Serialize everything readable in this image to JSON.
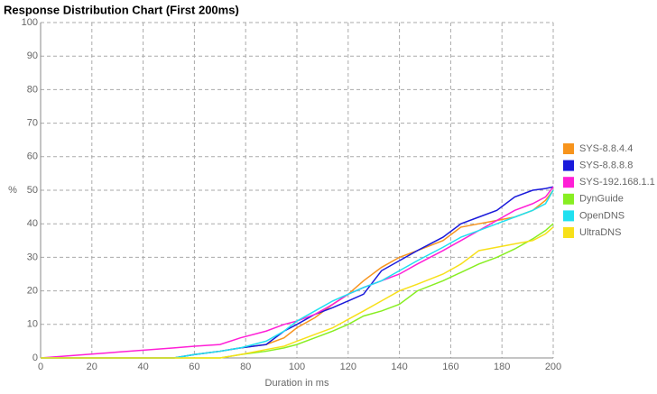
{
  "chart_data": {
    "type": "line",
    "title": "Response Distribution Chart (First 200ms)",
    "x_label": "Duration in ms",
    "y_label": "%",
    "x": [
      0,
      52,
      60,
      70,
      78,
      88,
      95,
      100,
      107,
      114,
      120,
      126,
      133,
      140,
      147,
      157,
      164,
      171,
      178,
      185,
      192,
      197,
      200
    ],
    "xlim": [
      0,
      200
    ],
    "xticks": [
      0,
      20,
      40,
      60,
      80,
      100,
      120,
      140,
      160,
      180,
      200
    ],
    "ylim": [
      0,
      100
    ],
    "yticks": [
      0,
      10,
      20,
      30,
      40,
      50,
      60,
      70,
      80,
      90,
      100
    ],
    "grid": true,
    "legend": "right",
    "series": [
      {
        "name": "SYS-8.8.4.4",
        "color": "#f7941d",
        "values": [
          0,
          0,
          1,
          2,
          3,
          4,
          6,
          9,
          12,
          16,
          19,
          23,
          27,
          30,
          32,
          35,
          39,
          40,
          41,
          42,
          44,
          47,
          50
        ]
      },
      {
        "name": "SYS-8.8.8.8",
        "color": "#1a1adb",
        "values": [
          0,
          0,
          1,
          2,
          3,
          4,
          8,
          10,
          13,
          15,
          17,
          19,
          26,
          29,
          32,
          36,
          40,
          42,
          44,
          48,
          50,
          50.5,
          51
        ]
      },
      {
        "name": "SYS-192.168.1.1",
        "color": "#ff1fd6",
        "values": [
          0,
          3,
          3.5,
          4,
          6,
          8,
          10,
          11,
          13,
          16,
          19,
          21,
          23,
          25,
          28,
          32,
          35,
          38,
          41,
          44,
          46,
          48,
          51
        ]
      },
      {
        "name": "DynGuide",
        "color": "#88ee22",
        "values": [
          0,
          0,
          0,
          0,
          1,
          2,
          3,
          4,
          6,
          8,
          10,
          12.5,
          14,
          16,
          20,
          23,
          25.5,
          28,
          30,
          32.5,
          35.5,
          38,
          40
        ]
      },
      {
        "name": "OpenDNS",
        "color": "#1fe0f0",
        "values": [
          0,
          0,
          1,
          2,
          3,
          5,
          8,
          11,
          14,
          17,
          19,
          21,
          23,
          26,
          29,
          33,
          36,
          38,
          40,
          42,
          44,
          46,
          50
        ]
      },
      {
        "name": "UltraDNS",
        "color": "#f7e01a",
        "values": [
          0,
          0,
          0,
          0,
          1,
          2.5,
          3.5,
          5,
          7,
          9,
          11.5,
          14,
          17,
          20,
          22,
          25,
          28,
          32,
          33,
          34,
          35,
          37,
          39
        ]
      }
    ]
  }
}
